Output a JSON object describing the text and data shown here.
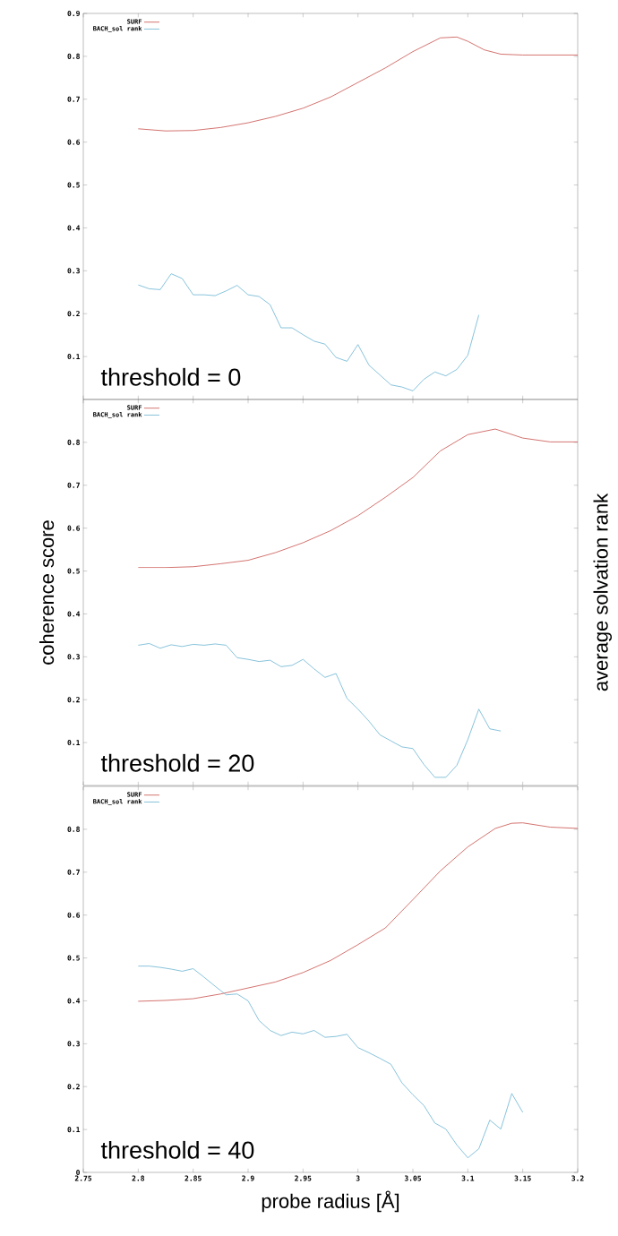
{
  "chart_data": [
    {
      "type": "line",
      "xlim": [
        2.75,
        3.2
      ],
      "ylim": [
        0,
        0.9
      ],
      "xticks": [
        2.75,
        2.8,
        2.85,
        2.9,
        2.95,
        3,
        3.05,
        3.1,
        3.15
      ],
      "yticks": [
        0.1,
        0.2,
        0.3,
        0.4,
        0.5,
        0.6,
        0.7,
        0.8,
        0.9
      ],
      "tick_labels": "y",
      "legend": "top left",
      "grid": false,
      "line_style": "solid",
      "annotations": [
        "threshold = 0"
      ],
      "series": [
        {
          "name": "SURF",
          "color": "#c8504b",
          "x": [
            2.8,
            2.825,
            2.85,
            2.875,
            2.9,
            2.925,
            2.95,
            2.975,
            3.0,
            3.025,
            3.05,
            3.075,
            3.09,
            3.1,
            3.115,
            3.13,
            3.15,
            3.2
          ],
          "values": [
            0.631,
            0.626,
            0.627,
            0.634,
            0.645,
            0.66,
            0.679,
            0.705,
            0.739,
            0.773,
            0.811,
            0.843,
            0.845,
            0.835,
            0.815,
            0.805,
            0.803,
            0.803
          ]
        },
        {
          "name": "BACH_sol rank",
          "color": "#6ab4d2",
          "x": [
            2.8,
            2.81,
            2.82,
            2.83,
            2.84,
            2.85,
            2.86,
            2.87,
            2.88,
            2.89,
            2.9,
            2.91,
            2.92,
            2.93,
            2.94,
            2.95,
            2.96,
            2.97,
            2.98,
            2.99,
            3.0,
            3.01,
            3.02,
            3.03,
            3.04,
            3.05,
            3.06,
            3.07,
            3.08,
            3.09,
            3.1,
            3.11
          ],
          "values": [
            0.267,
            0.258,
            0.256,
            0.293,
            0.282,
            0.244,
            0.244,
            0.242,
            0.253,
            0.266,
            0.244,
            0.24,
            0.221,
            0.167,
            0.167,
            0.151,
            0.136,
            0.129,
            0.098,
            0.089,
            0.128,
            0.08,
            0.057,
            0.034,
            0.029,
            0.02,
            0.047,
            0.064,
            0.055,
            0.07,
            0.103,
            0.197
          ]
        }
      ]
    },
    {
      "type": "line",
      "xlim": [
        2.75,
        3.2
      ],
      "ylim": [
        0,
        0.9
      ],
      "xticks": [
        2.75,
        2.8,
        2.85,
        2.9,
        2.95,
        3,
        3.05,
        3.1,
        3.15
      ],
      "yticks": [
        0.1,
        0.2,
        0.3,
        0.4,
        0.5,
        0.6,
        0.7,
        0.8
      ],
      "tick_labels": "y",
      "legend": "top left",
      "grid": false,
      "line_style": "solid",
      "ylabel": "coherence score",
      "y2label": "average solvation rank",
      "annotations": [
        "threshold = 20"
      ],
      "series": [
        {
          "name": "SURF",
          "color": "#c8504b",
          "x": [
            2.8,
            2.825,
            2.85,
            2.875,
            2.9,
            2.925,
            2.95,
            2.975,
            3.0,
            3.025,
            3.05,
            3.075,
            3.1,
            3.125,
            3.15,
            3.175,
            3.2
          ],
          "values": [
            0.508,
            0.508,
            0.51,
            0.517,
            0.525,
            0.543,
            0.566,
            0.594,
            0.629,
            0.672,
            0.718,
            0.78,
            0.818,
            0.831,
            0.81,
            0.801,
            0.801
          ]
        },
        {
          "name": "BACH_sol rank",
          "color": "#6ab4d2",
          "x": [
            2.8,
            2.81,
            2.82,
            2.83,
            2.84,
            2.85,
            2.86,
            2.87,
            2.88,
            2.89,
            2.9,
            2.91,
            2.92,
            2.93,
            2.94,
            2.95,
            2.96,
            2.97,
            2.98,
            2.99,
            3.0,
            3.01,
            3.02,
            3.03,
            3.04,
            3.05,
            3.06,
            3.07,
            3.08,
            3.09,
            3.1,
            3.11,
            3.12,
            3.13
          ],
          "values": [
            0.327,
            0.331,
            0.32,
            0.328,
            0.324,
            0.329,
            0.327,
            0.33,
            0.327,
            0.298,
            0.294,
            0.289,
            0.292,
            0.277,
            0.28,
            0.294,
            0.272,
            0.252,
            0.261,
            0.203,
            0.178,
            0.15,
            0.118,
            0.104,
            0.09,
            0.086,
            0.049,
            0.019,
            0.019,
            0.047,
            0.107,
            0.178,
            0.132,
            0.127
          ]
        }
      ]
    },
    {
      "type": "line",
      "xlim": [
        2.75,
        3.2
      ],
      "ylim": [
        0,
        0.9
      ],
      "xticks": [
        2.75,
        2.8,
        2.85,
        2.9,
        2.95,
        3,
        3.05,
        3.1,
        3.15,
        3.2
      ],
      "yticks": [
        0,
        0.1,
        0.2,
        0.3,
        0.4,
        0.5,
        0.6,
        0.7,
        0.8
      ],
      "legend": "top left",
      "grid": false,
      "line_style": "solid",
      "xlabel": "probe radius [Å]",
      "annotations": [
        "threshold = 40"
      ],
      "series": [
        {
          "name": "SURF",
          "color": "#c8504b",
          "x": [
            2.8,
            2.825,
            2.85,
            2.875,
            2.9,
            2.925,
            2.95,
            2.975,
            3.0,
            3.025,
            3.05,
            3.075,
            3.1,
            3.125,
            3.14,
            3.15,
            3.175,
            3.2
          ],
          "values": [
            0.399,
            0.401,
            0.405,
            0.416,
            0.43,
            0.444,
            0.466,
            0.494,
            0.531,
            0.57,
            0.636,
            0.703,
            0.759,
            0.802,
            0.814,
            0.815,
            0.805,
            0.802
          ]
        },
        {
          "name": "BACH_sol rank",
          "color": "#6ab4d2",
          "x": [
            2.8,
            2.81,
            2.82,
            2.83,
            2.84,
            2.85,
            2.86,
            2.87,
            2.88,
            2.89,
            2.9,
            2.91,
            2.92,
            2.93,
            2.94,
            2.95,
            2.96,
            2.97,
            2.98,
            2.99,
            3.0,
            3.01,
            3.02,
            3.03,
            3.04,
            3.05,
            3.06,
            3.07,
            3.08,
            3.09,
            3.1,
            3.11,
            3.12,
            3.13,
            3.14,
            3.15
          ],
          "values": [
            0.481,
            0.481,
            0.478,
            0.474,
            0.469,
            0.475,
            0.455,
            0.434,
            0.414,
            0.416,
            0.4,
            0.354,
            0.331,
            0.319,
            0.327,
            0.323,
            0.331,
            0.315,
            0.317,
            0.322,
            0.291,
            0.279,
            0.266,
            0.252,
            0.209,
            0.181,
            0.156,
            0.115,
            0.101,
            0.064,
            0.034,
            0.055,
            0.122,
            0.101,
            0.184,
            0.14
          ]
        }
      ]
    }
  ]
}
